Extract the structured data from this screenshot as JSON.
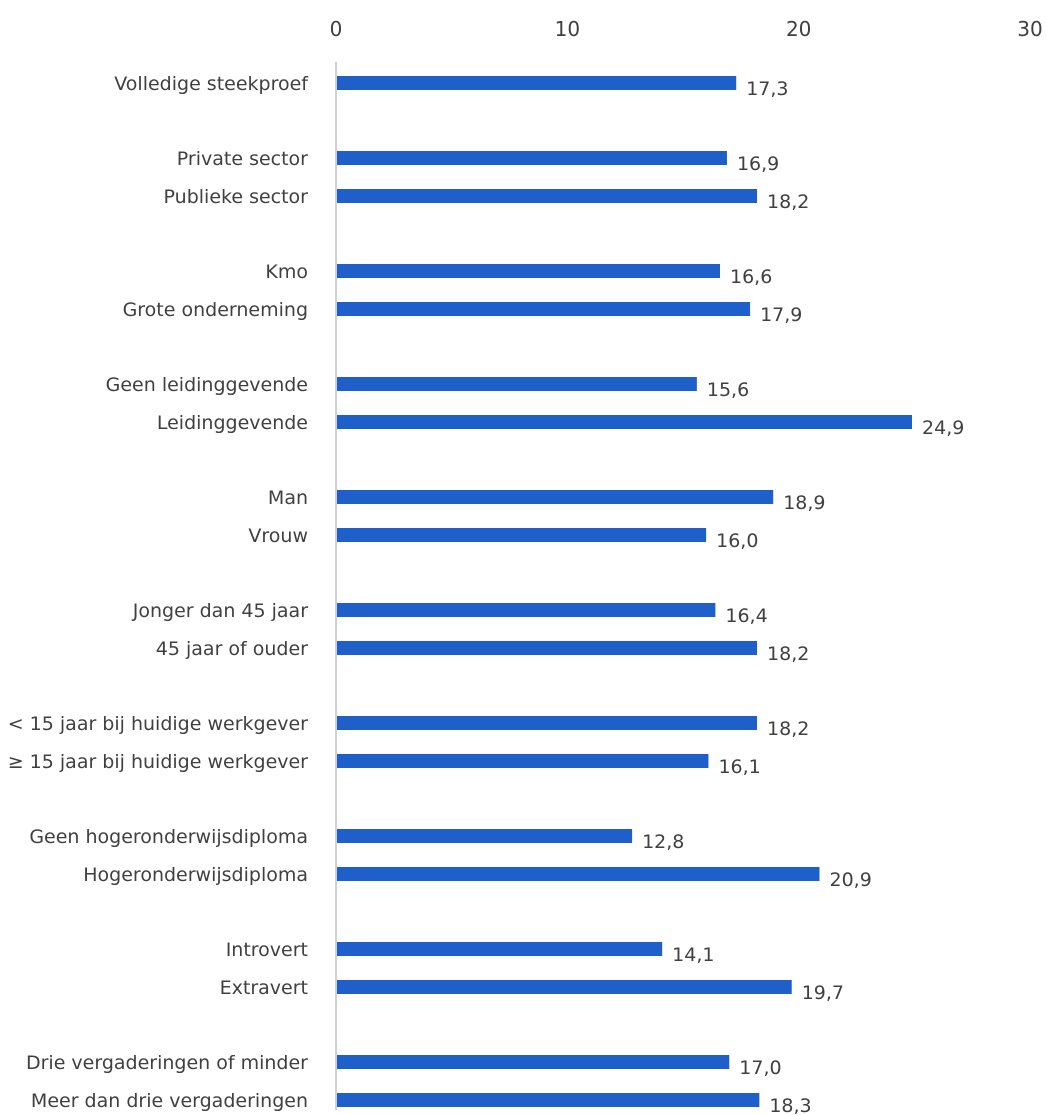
{
  "chart_data": {
    "type": "bar",
    "orientation": "horizontal",
    "title": "",
    "xlabel": "",
    "ylabel": "",
    "xlim": [
      0,
      30
    ],
    "x_ticks": [
      "0",
      "10",
      "20",
      "30"
    ],
    "grid": false,
    "legend": "none",
    "bar_color": "#1f5fc9",
    "categories": [
      "Volledige steekproef",
      "Private sector",
      "Publieke sector",
      "Kmo",
      "Grote onderneming",
      "Geen leidinggevende",
      "Leidinggevende",
      "Man",
      "Vrouw",
      "Jonger dan 45 jaar",
      "45 jaar of ouder",
      "< 15 jaar bij huidige werkgever",
      "≥ 15 jaar bij huidige werkgever",
      "Geen hogeronderwijsdiploma",
      "Hogeronderwijsdiploma",
      "Introvert",
      "Extravert",
      "Drie vergaderingen of minder",
      "Meer dan drie vergaderingen"
    ],
    "values": [
      17.3,
      16.9,
      18.2,
      16.6,
      17.9,
      15.6,
      24.9,
      18.9,
      16.0,
      16.4,
      18.2,
      18.2,
      16.1,
      12.8,
      20.9,
      14.1,
      19.7,
      17.0,
      18.3
    ],
    "value_labels": [
      "17,3",
      "16,9",
      "18,2",
      "16,6",
      "17,9",
      "15,6",
      "24,9",
      "18,9",
      "16,0",
      "16,4",
      "18,2",
      "18,2",
      "16,1",
      "12,8",
      "20,9",
      "14,1",
      "19,7",
      "17,0",
      "18,3"
    ]
  }
}
